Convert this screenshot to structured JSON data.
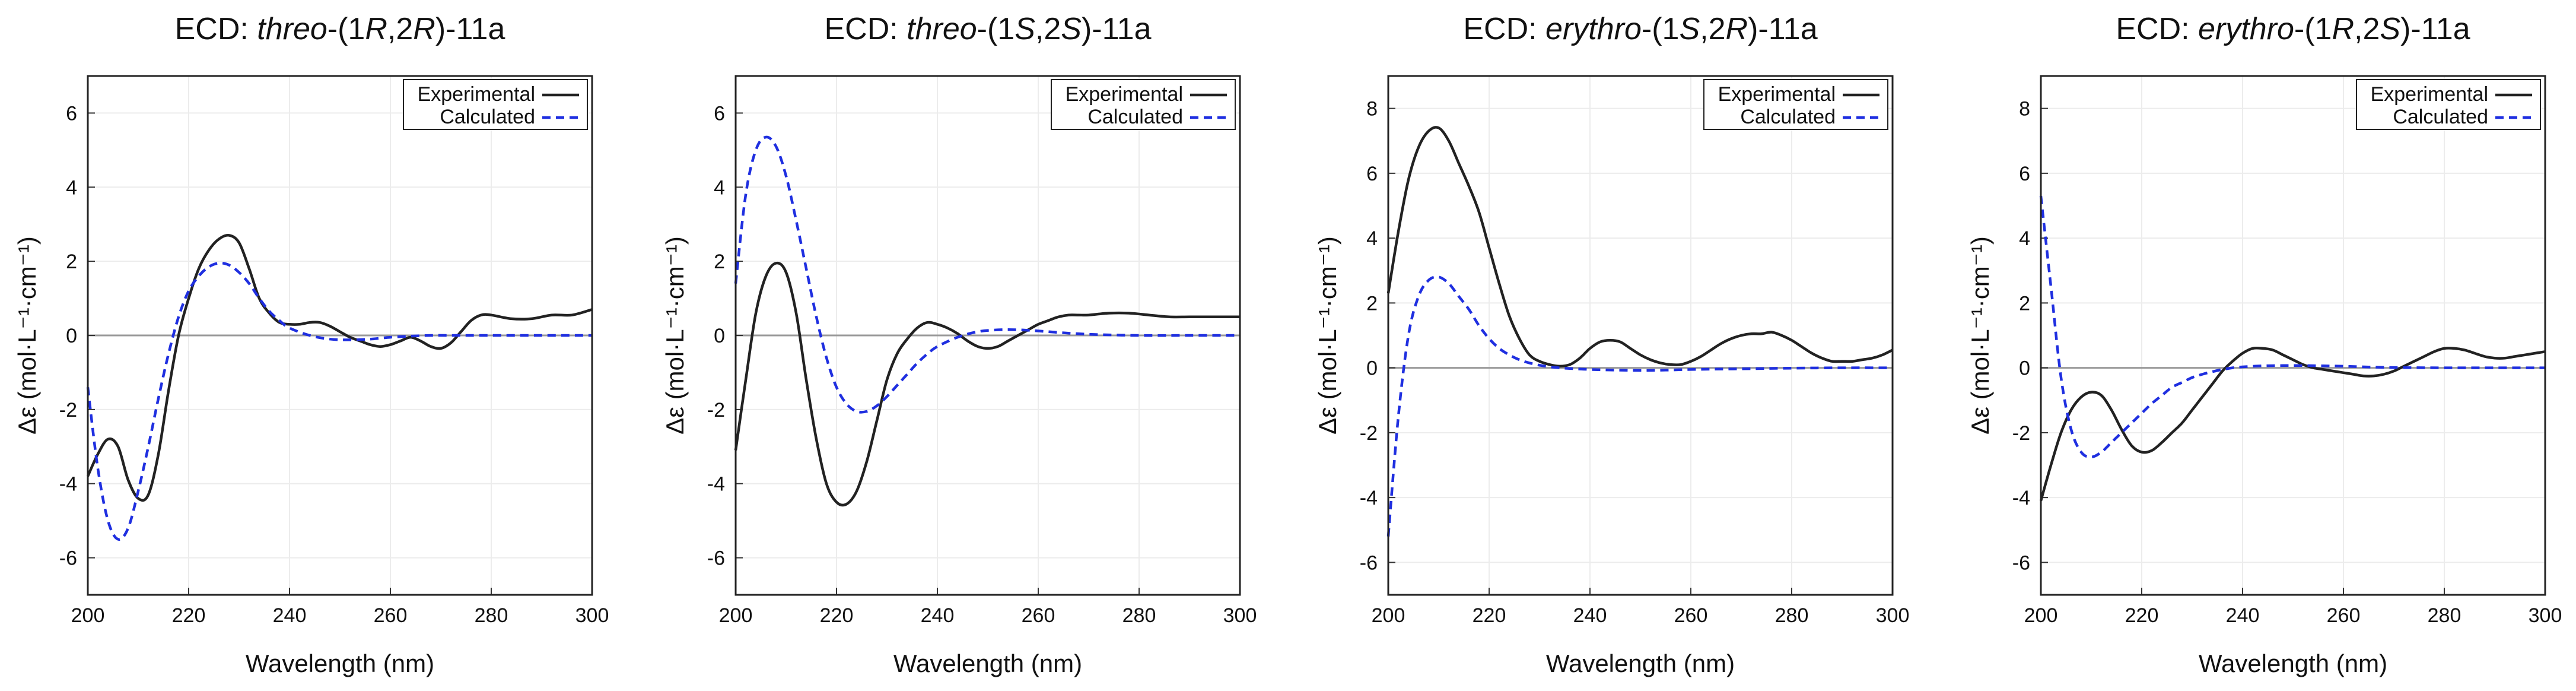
{
  "figure": {
    "description_type": "ECD spectra panels",
    "colors": {
      "experimental": "#222222",
      "calculated": "#1f2fe0",
      "zero_line": "#9a9a9a",
      "grid": "#ececec"
    }
  },
  "chart_data": [
    {
      "type": "line",
      "title_prefix": "ECD: ",
      "title_parts": [
        {
          "t": "threo",
          "i": true
        },
        {
          "t": "-(1",
          "i": false
        },
        {
          "t": "R",
          "i": true
        },
        {
          "t": ",2",
          "i": false
        },
        {
          "t": "R",
          "i": true
        },
        {
          "t": ")-11a",
          "i": false
        }
      ],
      "xlabel": "Wavelength (nm)",
      "ylabel": "Δε (mol·L⁻¹·cm⁻¹)",
      "xlim": [
        200,
        300
      ],
      "ylim": [
        -7,
        7
      ],
      "xticks": [
        "200",
        "220",
        "240",
        "260",
        "280",
        "300"
      ],
      "yticks": [
        "-6",
        "-4",
        "-2",
        "0",
        "2",
        "4",
        "6"
      ],
      "legend": [
        "Experimental",
        "Calculated"
      ],
      "series": [
        {
          "name": "Experimental",
          "x": [
            200,
            202,
            204,
            206,
            208,
            210,
            212,
            214,
            216,
            218,
            220,
            222,
            224,
            226,
            228,
            230,
            232,
            234,
            236,
            238,
            240,
            242,
            244,
            246,
            248,
            250,
            252,
            254,
            256,
            258,
            260,
            262,
            264,
            266,
            268,
            270,
            272,
            274,
            276,
            278,
            280,
            284,
            288,
            292,
            296,
            300
          ],
          "y": [
            -3.8,
            -3.2,
            -2.8,
            -3.0,
            -3.9,
            -4.4,
            -4.3,
            -3.2,
            -1.5,
            0.0,
            1.0,
            1.8,
            2.3,
            2.6,
            2.7,
            2.5,
            1.8,
            1.0,
            0.6,
            0.35,
            0.3,
            0.3,
            0.35,
            0.35,
            0.25,
            0.1,
            -0.05,
            -0.15,
            -0.25,
            -0.3,
            -0.25,
            -0.15,
            -0.05,
            -0.15,
            -0.3,
            -0.35,
            -0.2,
            0.1,
            0.4,
            0.55,
            0.55,
            0.45,
            0.45,
            0.55,
            0.55,
            0.7
          ]
        },
        {
          "name": "Calculated",
          "x": [
            200,
            202,
            204,
            206,
            208,
            210,
            212,
            214,
            216,
            218,
            220,
            222,
            224,
            226,
            228,
            230,
            232,
            234,
            236,
            238,
            240,
            244,
            248,
            252,
            256,
            260,
            264,
            268,
            272,
            280,
            290,
            300
          ],
          "y": [
            -1.4,
            -3.6,
            -5.0,
            -5.5,
            -5.2,
            -4.2,
            -3.0,
            -1.7,
            -0.5,
            0.5,
            1.2,
            1.6,
            1.85,
            1.95,
            1.9,
            1.7,
            1.4,
            1.0,
            0.65,
            0.4,
            0.2,
            0.0,
            -0.1,
            -0.12,
            -0.1,
            -0.05,
            -0.02,
            0.0,
            0.0,
            0.0,
            0.0,
            0.0
          ]
        }
      ]
    },
    {
      "type": "line",
      "title_prefix": "ECD: ",
      "title_parts": [
        {
          "t": "threo",
          "i": true
        },
        {
          "t": "-(1",
          "i": false
        },
        {
          "t": "S",
          "i": true
        },
        {
          "t": ",2",
          "i": false
        },
        {
          "t": "S",
          "i": true
        },
        {
          "t": ")-11a",
          "i": false
        }
      ],
      "xlabel": "Wavelength (nm)",
      "ylabel": "Δε (mol·L⁻¹·cm⁻¹)",
      "xlim": [
        200,
        300
      ],
      "ylim": [
        -7,
        7
      ],
      "xticks": [
        "200",
        "220",
        "240",
        "260",
        "280",
        "300"
      ],
      "yticks": [
        "-6",
        "-4",
        "-2",
        "0",
        "2",
        "4",
        "6"
      ],
      "legend": [
        "Experimental",
        "Calculated"
      ],
      "series": [
        {
          "name": "Experimental",
          "x": [
            200,
            202,
            204,
            206,
            208,
            210,
            212,
            214,
            216,
            218,
            220,
            222,
            224,
            226,
            228,
            230,
            232,
            234,
            236,
            238,
            240,
            242,
            244,
            246,
            248,
            250,
            252,
            254,
            256,
            258,
            260,
            262,
            264,
            266,
            268,
            270,
            274,
            278,
            282,
            286,
            290,
            295,
            300
          ],
          "y": [
            -3.1,
            -1.2,
            0.6,
            1.6,
            1.95,
            1.7,
            0.6,
            -1.2,
            -2.8,
            -4.0,
            -4.5,
            -4.55,
            -4.2,
            -3.4,
            -2.3,
            -1.2,
            -0.5,
            -0.1,
            0.2,
            0.35,
            0.3,
            0.2,
            0.05,
            -0.15,
            -0.3,
            -0.35,
            -0.3,
            -0.15,
            0.0,
            0.15,
            0.3,
            0.4,
            0.5,
            0.55,
            0.55,
            0.55,
            0.6,
            0.6,
            0.55,
            0.5,
            0.5,
            0.5,
            0.5
          ]
        },
        {
          "name": "Calculated",
          "x": [
            200,
            202,
            204,
            206,
            208,
            210,
            212,
            214,
            216,
            218,
            220,
            222,
            224,
            226,
            228,
            230,
            232,
            234,
            236,
            238,
            240,
            244,
            248,
            252,
            256,
            260,
            264,
            270,
            280,
            290,
            300
          ],
          "y": [
            1.4,
            3.8,
            5.0,
            5.35,
            5.1,
            4.3,
            3.1,
            1.8,
            0.5,
            -0.6,
            -1.4,
            -1.85,
            -2.05,
            -2.05,
            -1.9,
            -1.65,
            -1.35,
            -1.05,
            -0.75,
            -0.5,
            -0.3,
            -0.05,
            0.1,
            0.15,
            0.15,
            0.12,
            0.08,
            0.03,
            0.0,
            0.0,
            0.0
          ]
        }
      ]
    },
    {
      "type": "line",
      "title_prefix": "ECD: ",
      "title_parts": [
        {
          "t": "erythro",
          "i": true
        },
        {
          "t": "-(1",
          "i": false
        },
        {
          "t": "S",
          "i": true
        },
        {
          "t": ",2",
          "i": false
        },
        {
          "t": "R",
          "i": true
        },
        {
          "t": ")-11a",
          "i": false
        }
      ],
      "xlabel": "Wavelength (nm)",
      "ylabel": "Δε (mol·L⁻¹·cm⁻¹)",
      "xlim": [
        200,
        300
      ],
      "ylim": [
        -7,
        9
      ],
      "xticks": [
        "200",
        "220",
        "240",
        "260",
        "280",
        "300"
      ],
      "yticks": [
        "-6",
        "-4",
        "-2",
        "0",
        "2",
        "4",
        "6",
        "8"
      ],
      "legend": [
        "Experimental",
        "Calculated"
      ],
      "series": [
        {
          "name": "Experimental",
          "x": [
            200,
            202,
            204,
            206,
            208,
            210,
            212,
            214,
            216,
            218,
            220,
            222,
            224,
            226,
            228,
            230,
            232,
            234,
            236,
            238,
            240,
            242,
            244,
            246,
            248,
            250,
            252,
            254,
            256,
            258,
            260,
            262,
            264,
            266,
            268,
            270,
            272,
            274,
            276,
            278,
            280,
            282,
            284,
            286,
            288,
            290,
            292,
            294,
            296,
            298,
            300
          ],
          "y": [
            2.3,
            4.2,
            5.8,
            6.8,
            7.3,
            7.4,
            7.0,
            6.3,
            5.6,
            4.8,
            3.7,
            2.6,
            1.6,
            0.9,
            0.4,
            0.2,
            0.1,
            0.05,
            0.1,
            0.3,
            0.6,
            0.8,
            0.85,
            0.8,
            0.6,
            0.4,
            0.25,
            0.15,
            0.1,
            0.1,
            0.2,
            0.35,
            0.55,
            0.75,
            0.9,
            1.0,
            1.05,
            1.05,
            1.1,
            1.0,
            0.85,
            0.65,
            0.45,
            0.3,
            0.2,
            0.2,
            0.2,
            0.25,
            0.3,
            0.4,
            0.55
          ]
        },
        {
          "name": "Calculated",
          "x": [
            200,
            202,
            204,
            206,
            208,
            210,
            212,
            214,
            216,
            218,
            220,
            222,
            224,
            226,
            228,
            230,
            232,
            234,
            236,
            240,
            245,
            250,
            255,
            260,
            270,
            280,
            290,
            300
          ],
          "y": [
            -5.2,
            -1.5,
            1.0,
            2.2,
            2.7,
            2.8,
            2.6,
            2.2,
            1.8,
            1.3,
            0.9,
            0.6,
            0.4,
            0.25,
            0.15,
            0.08,
            0.03,
            0.0,
            -0.02,
            -0.05,
            -0.07,
            -0.08,
            -0.07,
            -0.05,
            -0.03,
            -0.01,
            0.0,
            0.0
          ]
        }
      ]
    },
    {
      "type": "line",
      "title_prefix": "ECD: ",
      "title_parts": [
        {
          "t": "erythro",
          "i": true
        },
        {
          "t": "-(1",
          "i": false
        },
        {
          "t": "R",
          "i": true
        },
        {
          "t": ",2",
          "i": false
        },
        {
          "t": "S",
          "i": true
        },
        {
          "t": ")-11a",
          "i": false
        }
      ],
      "xlabel": "Wavelength (nm)",
      "ylabel": "Δε (mol·L⁻¹·cm⁻¹)",
      "xlim": [
        200,
        300
      ],
      "ylim": [
        -7,
        9
      ],
      "xticks": [
        "200",
        "220",
        "240",
        "260",
        "280",
        "300"
      ],
      "yticks": [
        "-6",
        "-4",
        "-2",
        "0",
        "2",
        "4",
        "6",
        "8"
      ],
      "legend": [
        "Experimental",
        "Calculated"
      ],
      "series": [
        {
          "name": "Experimental",
          "x": [
            200,
            202,
            204,
            206,
            208,
            210,
            212,
            214,
            216,
            218,
            220,
            222,
            224,
            226,
            228,
            230,
            232,
            234,
            236,
            238,
            240,
            242,
            244,
            246,
            248,
            250,
            252,
            254,
            256,
            258,
            260,
            262,
            264,
            266,
            268,
            270,
            272,
            274,
            276,
            278,
            280,
            282,
            284,
            286,
            288,
            290,
            292,
            294,
            296,
            298,
            300
          ],
          "y": [
            -4.1,
            -3.0,
            -2.0,
            -1.3,
            -0.9,
            -0.75,
            -0.85,
            -1.3,
            -1.9,
            -2.4,
            -2.6,
            -2.55,
            -2.3,
            -2.0,
            -1.7,
            -1.3,
            -0.9,
            -0.5,
            -0.1,
            0.2,
            0.45,
            0.6,
            0.6,
            0.55,
            0.4,
            0.25,
            0.1,
            0.0,
            -0.05,
            -0.1,
            -0.15,
            -0.2,
            -0.25,
            -0.25,
            -0.2,
            -0.1,
            0.05,
            0.2,
            0.35,
            0.5,
            0.6,
            0.6,
            0.55,
            0.45,
            0.35,
            0.3,
            0.3,
            0.35,
            0.4,
            0.45,
            0.5
          ]
        },
        {
          "name": "Calculated",
          "x": [
            200,
            202,
            204,
            206,
            208,
            210,
            212,
            214,
            216,
            218,
            220,
            222,
            224,
            226,
            228,
            230,
            232,
            234,
            236,
            238,
            240,
            244,
            248,
            252,
            256,
            260,
            264,
            270,
            280,
            290,
            300
          ],
          "y": [
            5.3,
            2.5,
            -0.3,
            -1.9,
            -2.6,
            -2.75,
            -2.6,
            -2.3,
            -2.0,
            -1.7,
            -1.4,
            -1.1,
            -0.85,
            -0.6,
            -0.45,
            -0.3,
            -0.2,
            -0.12,
            -0.05,
            0.0,
            0.03,
            0.06,
            0.07,
            0.07,
            0.06,
            0.05,
            0.03,
            0.01,
            0.0,
            0.0,
            0.0
          ]
        }
      ]
    }
  ]
}
